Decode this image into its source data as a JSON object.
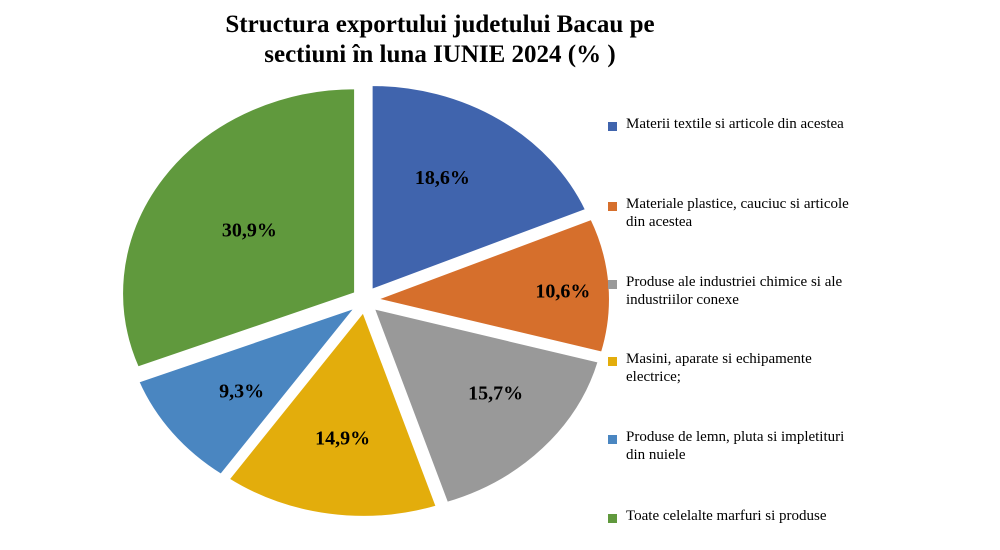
{
  "chart_data": {
    "type": "pie",
    "title_lines": [
      "Structura exportului judetului Bacau pe",
      "sectiuni  în luna IUNIE  2024 (% )"
    ],
    "slices": [
      {
        "label": "Materii textile si articole din acestea",
        "value": 18.6,
        "value_label": "18,6%",
        "color": "#4064ad"
      },
      {
        "label": "Materiale plastice, cauciuc si articole din acestea",
        "value": 10.6,
        "value_label": "10,6%",
        "color": "#d66f2c"
      },
      {
        "label": "Produse ale industriei chimice si ale industriilor conexe",
        "value": 15.7,
        "value_label": "15,7%",
        "color": "#999999"
      },
      {
        "label": "Masini, aparate si echipamente electrice;",
        "value": 14.9,
        "value_label": "14,9%",
        "color": "#e3ad0c"
      },
      {
        "label": "Produse de lemn, pluta si impletituri din nuiele",
        "value": 9.3,
        "value_label": "9,3%",
        "color": "#4a86c1"
      },
      {
        "label": "Toate celelalte marfuri si produse",
        "value": 30.9,
        "value_label": "30,9%",
        "color": "#60993d"
      }
    ],
    "legend_position": "right"
  }
}
